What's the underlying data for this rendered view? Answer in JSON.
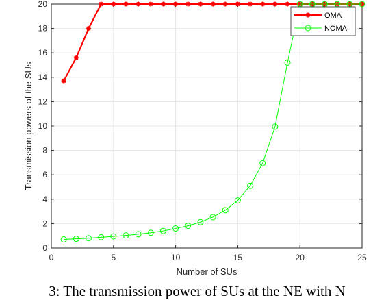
{
  "chart_data": {
    "type": "line",
    "xlabel": "Number of SUs",
    "ylabel": "Transmission powers of the SUs",
    "xlim": [
      0,
      25
    ],
    "ylim": [
      0,
      20
    ],
    "xticks": [
      0,
      5,
      10,
      15,
      20,
      25
    ],
    "yticks": [
      0,
      2,
      4,
      6,
      8,
      10,
      12,
      14,
      16,
      18,
      20
    ],
    "grid": true,
    "legend": "top-right",
    "x": [
      1,
      2,
      3,
      4,
      5,
      6,
      7,
      8,
      9,
      10,
      11,
      12,
      13,
      14,
      15,
      16,
      17,
      18,
      19,
      20,
      21,
      22,
      23,
      24,
      25
    ],
    "series": [
      {
        "name": "OMA",
        "color": "#ff0000",
        "marker": "asterisk",
        "values": [
          13.7,
          15.6,
          18.0,
          20,
          20,
          20,
          20,
          20,
          20,
          20,
          20,
          20,
          20,
          20,
          20,
          20,
          20,
          20,
          20,
          20,
          20,
          20,
          20,
          20,
          20
        ]
      },
      {
        "name": "NOMA",
        "color": "#00ff00",
        "marker": "circle",
        "values": [
          0.7,
          0.75,
          0.8,
          0.88,
          0.95,
          1.03,
          1.13,
          1.25,
          1.4,
          1.6,
          1.82,
          2.12,
          2.53,
          3.1,
          3.9,
          5.1,
          6.95,
          9.95,
          15.2,
          20,
          20,
          20,
          20,
          20,
          20
        ]
      }
    ]
  },
  "caption": "3: The transmission power of SUs at the NE with N"
}
